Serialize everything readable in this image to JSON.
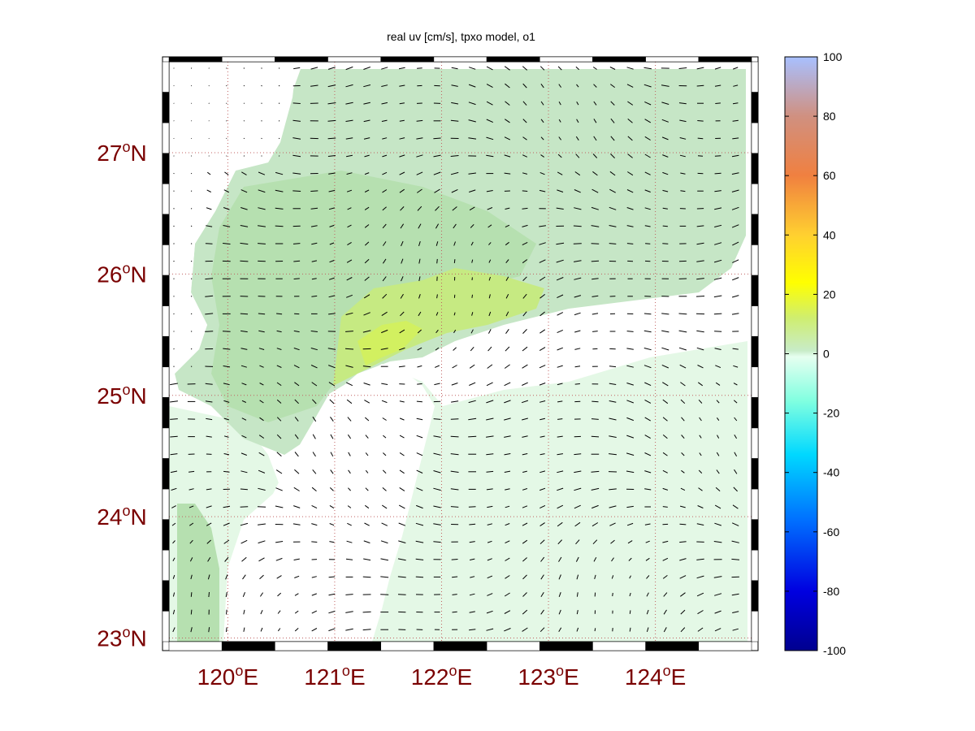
{
  "chart_data": {
    "type": "heatmap",
    "title": "real uv [cm/s], tpxo model, o1",
    "x_ticks": [
      "120°E",
      "121°E",
      "122°E",
      "123°E",
      "124°E"
    ],
    "y_ticks": [
      "23°N",
      "24°N",
      "25°N",
      "26°N",
      "27°N"
    ],
    "xlim": [
      119.45,
      124.9
    ],
    "ylim": [
      22.97,
      27.75
    ],
    "grid": true,
    "colorbar": {
      "ticks": [
        "100",
        "80",
        "60",
        "40",
        "20",
        "0",
        "-20",
        "-40",
        "-60",
        "-80",
        "-100"
      ],
      "range": [
        -100,
        100
      ],
      "colormap": [
        "#00008f",
        "#0000ff",
        "#0080ff",
        "#00ffff",
        "#e6fff0",
        "#c8ecc8",
        "#bff080",
        "#ffff00",
        "#ffaa30",
        "#f07840",
        "#c8a0a0",
        "#a8c0ff"
      ]
    },
    "field_colors": {
      "shelf_north": "#c6e6c6",
      "core": "#b6e0b0",
      "jet": "#c6ea82",
      "jet_bright": "#d2f060",
      "open_ocean": "#e4f8e6",
      "land": "#ffffff"
    }
  }
}
